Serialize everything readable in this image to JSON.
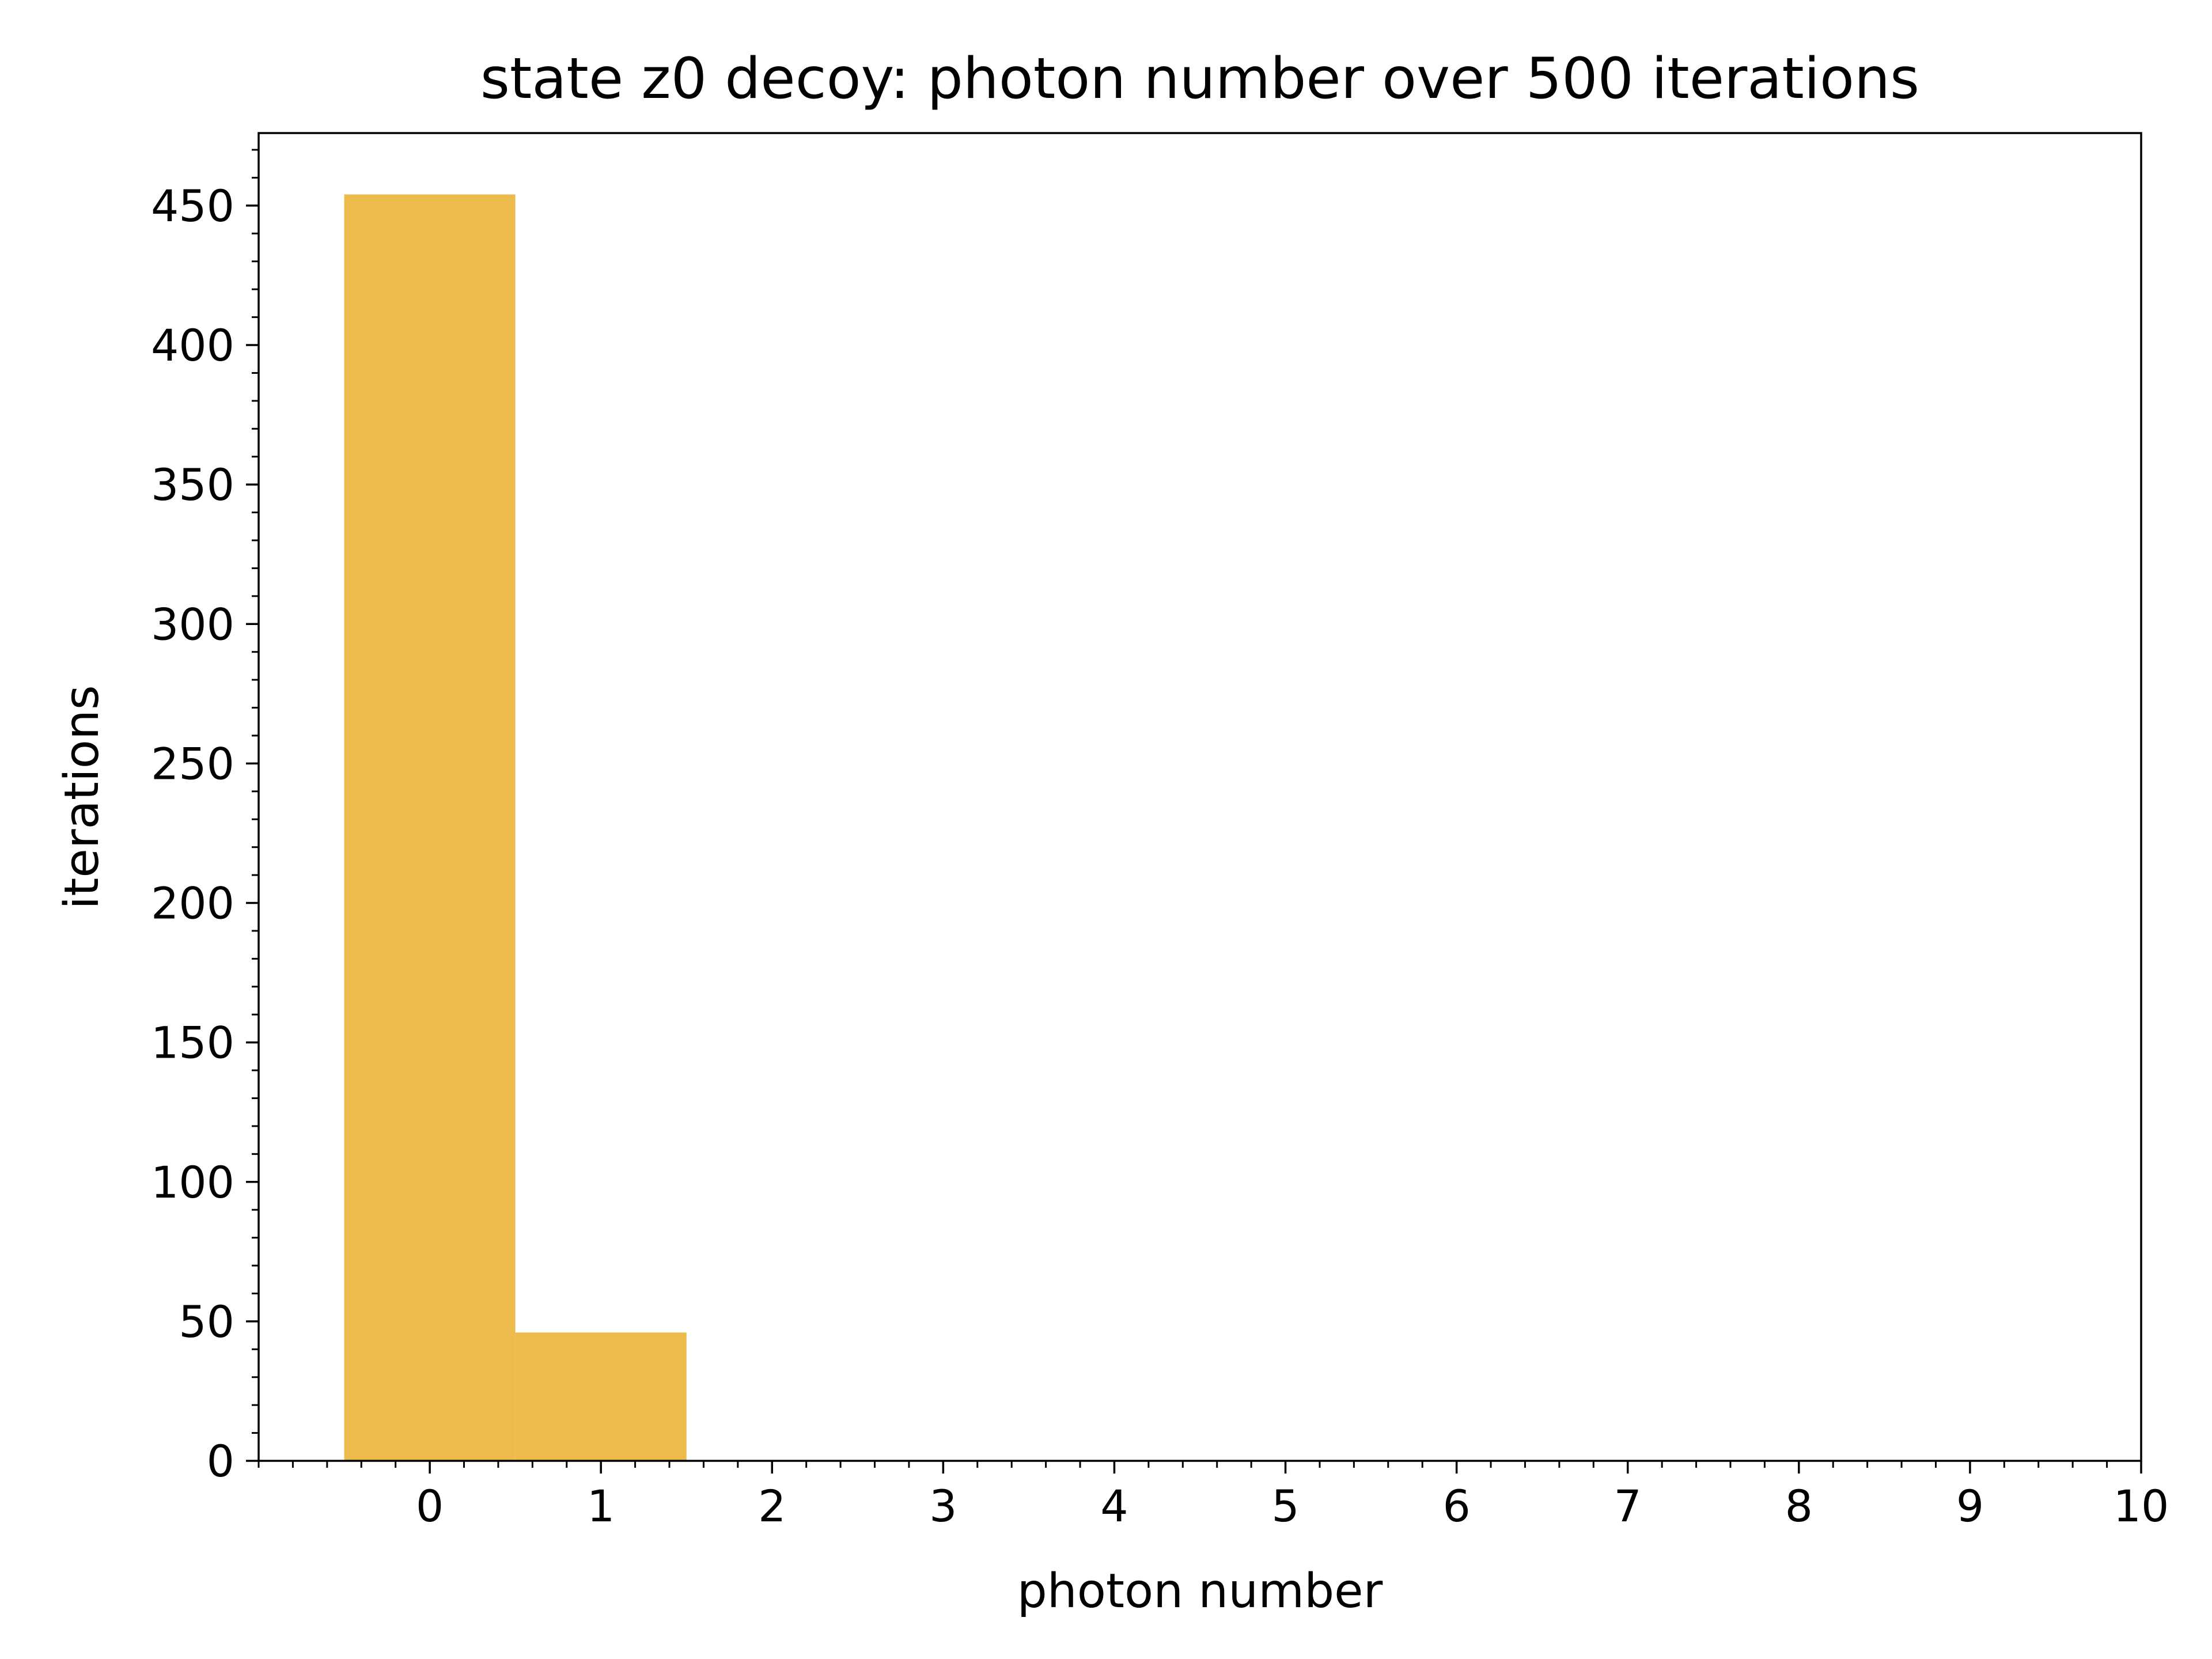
{
  "chart_data": {
    "type": "bar",
    "title": "state z0 decoy: photon number over 500 iterations",
    "xlabel": "photon number",
    "ylabel": "iterations",
    "categories": [
      0,
      1
    ],
    "values": [
      454,
      46
    ],
    "bar_width": 1,
    "xlim": [
      -1,
      10
    ],
    "ylim": [
      0,
      476
    ],
    "xticks": [
      0,
      1,
      2,
      3,
      4,
      5,
      6,
      7,
      8,
      9,
      10
    ],
    "yticks": [
      0,
      50,
      100,
      150,
      200,
      250,
      300,
      350,
      400,
      450
    ],
    "x_minor_step": 0.2,
    "y_minor_step": 10,
    "grid": false,
    "legend": "none",
    "bar_color": "#ecbb4b"
  }
}
